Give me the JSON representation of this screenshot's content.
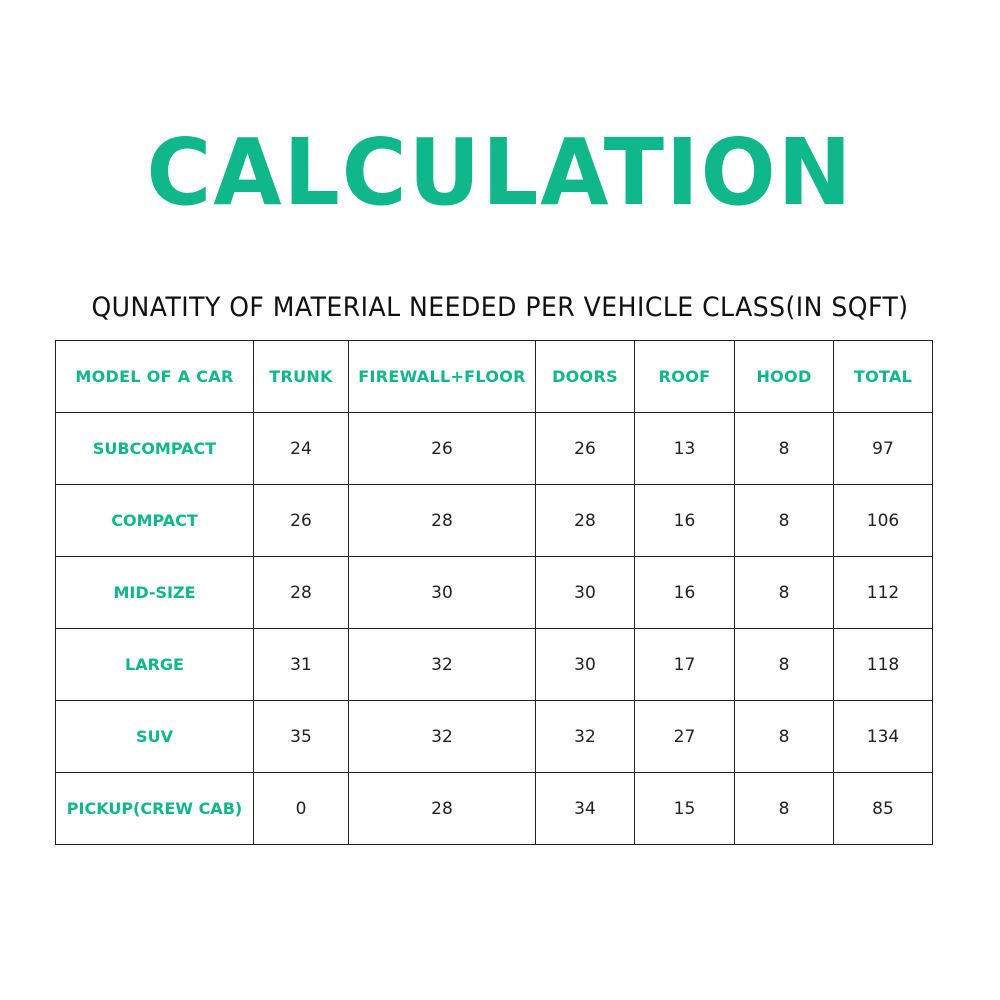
{
  "title": "CALCULATION",
  "subtitle": "QUNATITY OF MATERIAL NEEDED PER VEHICLE CLASS(IN SQFT)",
  "accent_color": "#0fb78a",
  "table": {
    "headers": [
      "MODEL OF A CAR",
      "TRUNK",
      "FIREWALL+FLOOR",
      "DOORS",
      "ROOF",
      "HOOD",
      "TOTAL"
    ],
    "rows": [
      [
        "SUBCOMPACT",
        "24",
        "26",
        "26",
        "13",
        "8",
        "97"
      ],
      [
        "COMPACT",
        "26",
        "28",
        "28",
        "16",
        "8",
        "106"
      ],
      [
        "MID-SIZE",
        "28",
        "30",
        "30",
        "16",
        "8",
        "112"
      ],
      [
        "LARGE",
        "31",
        "32",
        "30",
        "17",
        "8",
        "118"
      ],
      [
        "SUV",
        "35",
        "32",
        "32",
        "27",
        "8",
        "134"
      ],
      [
        "PICKUP(CREW CAB)",
        "0",
        "28",
        "34",
        "15",
        "8",
        "85"
      ]
    ]
  }
}
